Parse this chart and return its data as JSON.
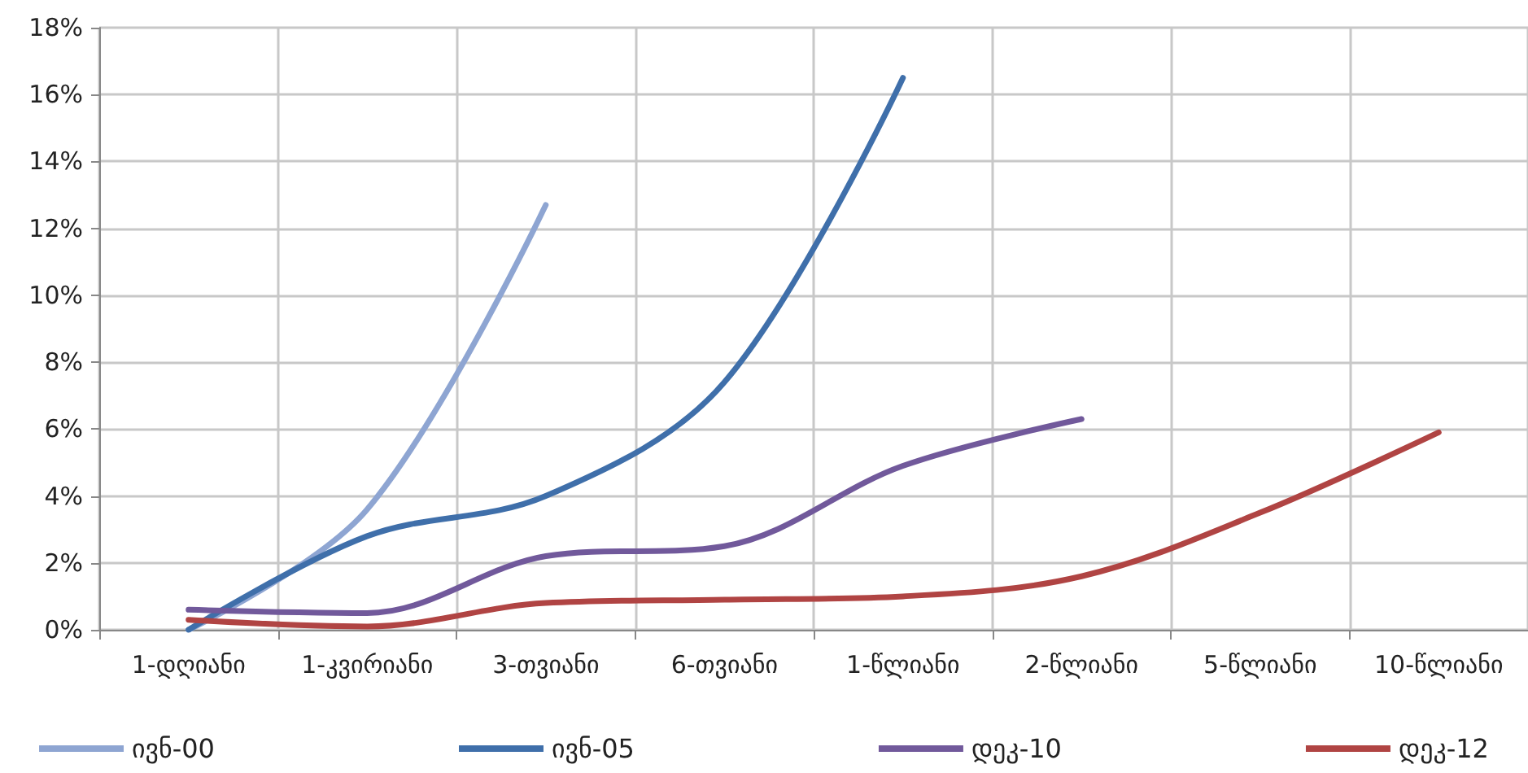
{
  "chart_data": {
    "type": "line",
    "categories": [
      "1-დღიანი",
      "1-კვირიანი",
      "3-თვიანი",
      "6-თვიანი",
      "1-წლიანი",
      "2-წლიანი",
      "5-წლიანი",
      "10-წლიანი"
    ],
    "series": [
      {
        "name": "ივნ-00",
        "color": "#8ea5d2",
        "values": [
          0,
          3.6,
          12.7,
          null,
          null,
          null,
          null,
          null
        ]
      },
      {
        "name": "ივნ-05",
        "color": "#3f6faa",
        "values": [
          0,
          2.8,
          4.0,
          7.4,
          16.5,
          null,
          null,
          null
        ]
      },
      {
        "name": "დეკ-10",
        "color": "#71599b",
        "values": [
          0.6,
          0.5,
          2.2,
          2.5,
          4.9,
          6.3,
          null,
          null
        ]
      },
      {
        "name": "დეკ-12",
        "color": "#b04443",
        "values": [
          0.3,
          0.1,
          0.8,
          0.9,
          1.0,
          1.6,
          3.5,
          5.9
        ]
      }
    ],
    "ylim": [
      0,
      18
    ],
    "yticks": [
      {
        "value": 0,
        "label": "0%"
      },
      {
        "value": 2,
        "label": "2%"
      },
      {
        "value": 4,
        "label": "4%"
      },
      {
        "value": 6,
        "label": "6%"
      },
      {
        "value": 8,
        "label": "8%"
      },
      {
        "value": 10,
        "label": "10%"
      },
      {
        "value": 12,
        "label": "12%"
      },
      {
        "value": 14,
        "label": "14%"
      },
      {
        "value": 16,
        "label": "16%"
      },
      {
        "value": 18,
        "label": "18%"
      }
    ],
    "grid": true,
    "legend": "bottom",
    "marker": "none",
    "line_style": "solid"
  }
}
